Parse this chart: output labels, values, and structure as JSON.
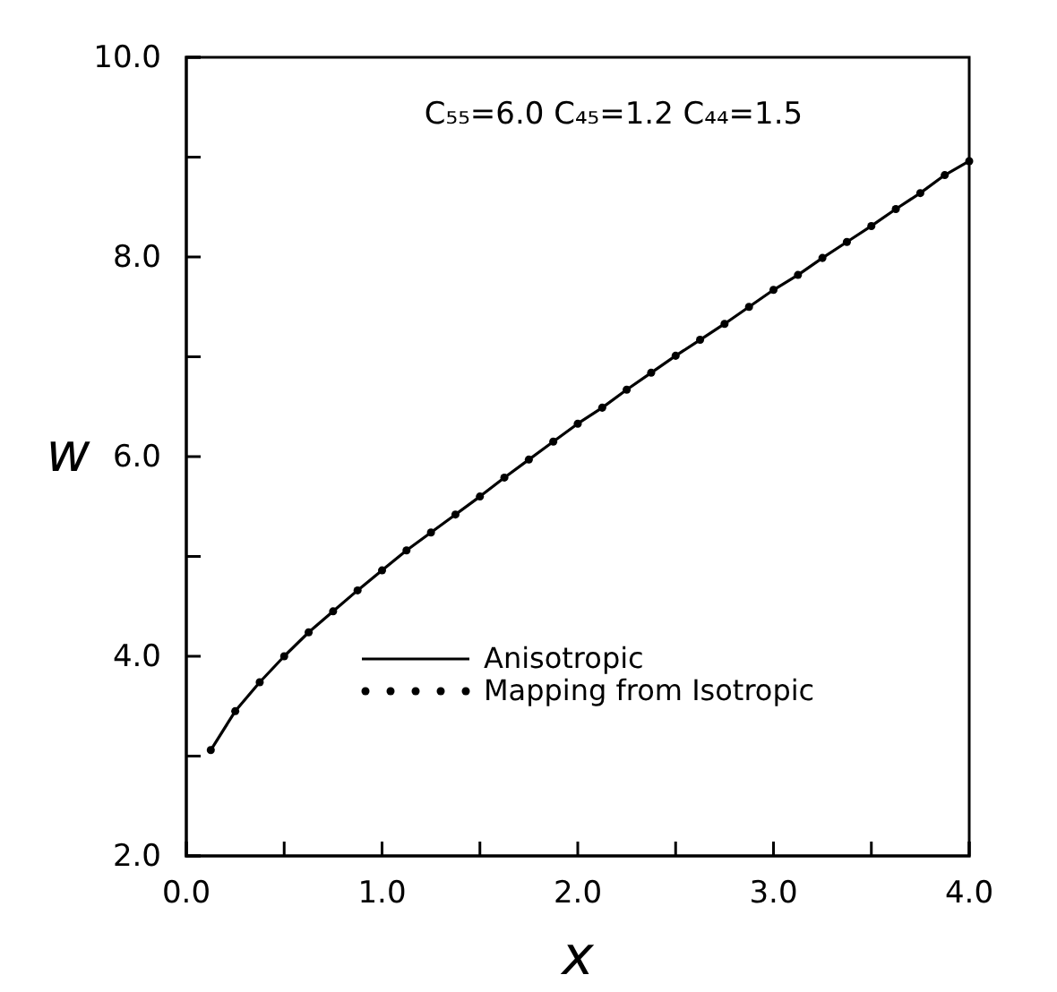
{
  "chart_data": {
    "type": "line",
    "xlabel": "x",
    "ylabel": "w",
    "annotations": [
      "C₅₅=6.0  C₄₅=1.2  C₄₄=1.5"
    ],
    "x": [
      0.125,
      0.25,
      0.375,
      0.5,
      0.625,
      0.75,
      0.875,
      1.0,
      1.125,
      1.25,
      1.375,
      1.5,
      1.625,
      1.75,
      1.875,
      2.0,
      2.125,
      2.25,
      2.375,
      2.5,
      2.625,
      2.75,
      2.875,
      3.0,
      3.125,
      3.25,
      3.375,
      3.5,
      3.625,
      3.75,
      3.875,
      4.0
    ],
    "series": [
      {
        "name": "Anisotropic",
        "color": "#000000",
        "line_style": "solid",
        "marker": "none",
        "values": [
          3.06,
          3.45,
          3.74,
          4.0,
          4.24,
          4.45,
          4.66,
          4.86,
          5.06,
          5.24,
          5.42,
          5.6,
          5.79,
          5.97,
          6.15,
          6.33,
          6.49,
          6.67,
          6.84,
          7.01,
          7.17,
          7.33,
          7.5,
          7.67,
          7.82,
          7.99,
          8.15,
          8.31,
          8.48,
          8.64,
          8.82,
          8.96
        ]
      },
      {
        "name": "Mapping from Isotropic",
        "type": "scatter",
        "color": "#000000",
        "marker": "circle",
        "values": [
          3.06,
          3.45,
          3.74,
          4.0,
          4.24,
          4.45,
          4.66,
          4.86,
          5.06,
          5.24,
          5.42,
          5.6,
          5.79,
          5.97,
          6.15,
          6.33,
          6.49,
          6.67,
          6.84,
          7.01,
          7.17,
          7.33,
          7.5,
          7.67,
          7.82,
          7.99,
          8.15,
          8.31,
          8.48,
          8.64,
          8.82,
          8.96
        ]
      }
    ],
    "xlim": [
      0,
      4
    ],
    "ylim": [
      2,
      10
    ],
    "xticks": [
      {
        "value": 0,
        "label": "0.0"
      },
      {
        "value": 0.5,
        "label": null
      },
      {
        "value": 1,
        "label": "1.0"
      },
      {
        "value": 1.5,
        "label": null
      },
      {
        "value": 2,
        "label": "2.0"
      },
      {
        "value": 2.5,
        "label": null
      },
      {
        "value": 3,
        "label": "3.0"
      },
      {
        "value": 3.5,
        "label": null
      },
      {
        "value": 4,
        "label": "4.0"
      }
    ],
    "yticks": [
      {
        "value": 2,
        "label": "2.0"
      },
      {
        "value": 3,
        "label": null
      },
      {
        "value": 4,
        "label": "4.0"
      },
      {
        "value": 5,
        "label": null
      },
      {
        "value": 6,
        "label": "6.0"
      },
      {
        "value": 7,
        "label": null
      },
      {
        "value": 8,
        "label": "8.0"
      },
      {
        "value": 9,
        "label": null
      },
      {
        "value": 10,
        "label": "10.0"
      }
    ],
    "grid": false,
    "legend": "bottom"
  }
}
